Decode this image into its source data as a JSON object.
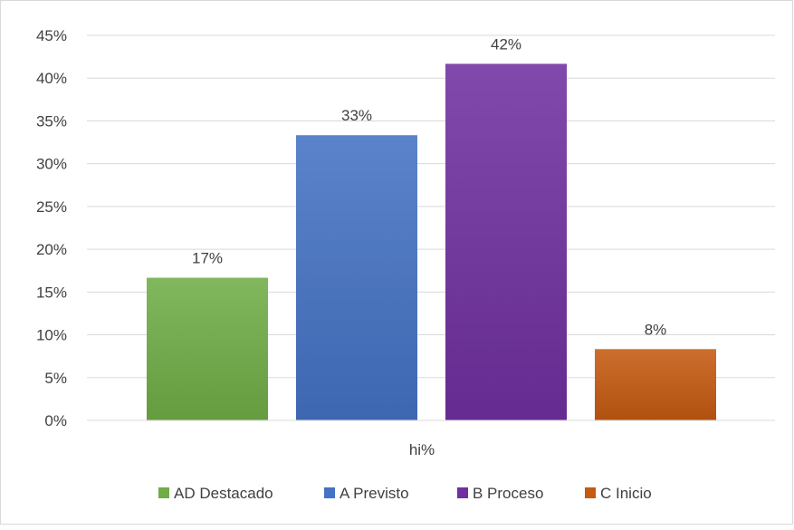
{
  "chart_data": {
    "type": "bar",
    "title": "",
    "xlabel": "",
    "ylabel": "",
    "categories": [
      "hi%"
    ],
    "series": [
      {
        "name": "AD Destacado",
        "values": [
          0.1667
        ],
        "color": "#70ad47",
        "label": "17%"
      },
      {
        "name": "A Previsto",
        "values": [
          0.3333
        ],
        "color": "#4472c4",
        "label": "33%"
      },
      {
        "name": "B Proceso",
        "values": [
          0.4167
        ],
        "color": "#7030a0",
        "label": "42%"
      },
      {
        "name": "C Inicio",
        "values": [
          0.0833
        ],
        "color": "#c55a11",
        "label": "8%"
      }
    ],
    "ylim": [
      0,
      0.45
    ],
    "yticks": [
      "0%",
      "5%",
      "10%",
      "15%",
      "20%",
      "25%",
      "30%",
      "35%",
      "40%",
      "45%"
    ],
    "grid": true,
    "legend": "bottom"
  }
}
